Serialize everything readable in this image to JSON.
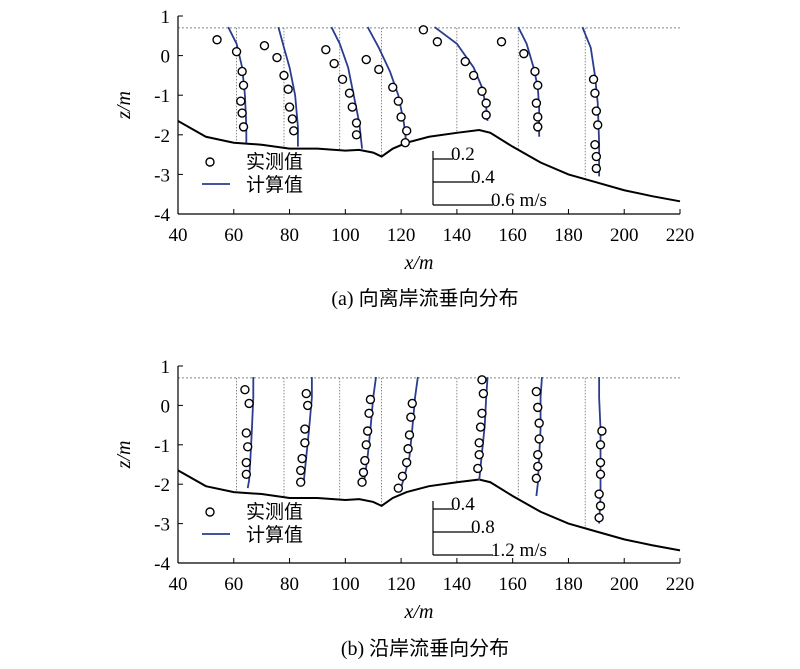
{
  "chart_data": [
    {
      "type": "line",
      "caption": "(a) 向离岸流垂向分布",
      "xlabel": "x/m",
      "ylabel": "z/m",
      "xlim": [
        40,
        220
      ],
      "ylim": [
        -4,
        1
      ],
      "xticks": [
        40,
        60,
        80,
        100,
        120,
        140,
        160,
        180,
        200,
        220
      ],
      "yticks": [
        1,
        0,
        -1,
        -2,
        -3,
        -4
      ],
      "water_level": 0.7,
      "legend": {
        "measured": "实测值",
        "computed": "计算值"
      },
      "scale_bar": {
        "labels": [
          "0.2",
          "0.4",
          "0.6 m/s"
        ],
        "values": [
          0.2,
          0.4,
          0.6
        ]
      },
      "bed_profile": [
        [
          40,
          -1.65
        ],
        [
          50,
          -2.05
        ],
        [
          60,
          -2.2
        ],
        [
          70,
          -2.25
        ],
        [
          80,
          -2.35
        ],
        [
          90,
          -2.35
        ],
        [
          100,
          -2.4
        ],
        [
          105,
          -2.38
        ],
        [
          110,
          -2.45
        ],
        [
          113,
          -2.55
        ],
        [
          117,
          -2.35
        ],
        [
          122,
          -2.2
        ],
        [
          130,
          -2.05
        ],
        [
          140,
          -1.95
        ],
        [
          148,
          -1.88
        ],
        [
          152,
          -1.95
        ],
        [
          160,
          -2.3
        ],
        [
          170,
          -2.7
        ],
        [
          180,
          -3.0
        ],
        [
          190,
          -3.2
        ],
        [
          200,
          -3.4
        ],
        [
          210,
          -3.55
        ],
        [
          220,
          -3.68
        ]
      ],
      "stations": [
        {
          "x0": 61,
          "measured": [
            [
              54,
              0.4
            ],
            [
              61,
              0.1
            ],
            [
              63,
              -0.4
            ],
            [
              63.5,
              -0.75
            ],
            [
              62.5,
              -1.15
            ],
            [
              63,
              -1.45
            ],
            [
              63.5,
              -1.8
            ]
          ],
          "computed": [
            [
              58,
              0.72
            ],
            [
              61,
              0.3
            ],
            [
              63,
              -0.3
            ],
            [
              64,
              -1.0
            ],
            [
              64.5,
              -1.8
            ],
            [
              64.5,
              -2.2
            ]
          ]
        },
        {
          "x0": 78,
          "measured": [
            [
              71,
              0.25
            ],
            [
              75.5,
              -0.05
            ],
            [
              78,
              -0.5
            ],
            [
              79.5,
              -0.85
            ],
            [
              80,
              -1.3
            ],
            [
              81,
              -1.6
            ],
            [
              81.5,
              -1.9
            ]
          ],
          "computed": [
            [
              76,
              0.72
            ],
            [
              78,
              0.2
            ],
            [
              80,
              -0.3
            ],
            [
              82,
              -1.0
            ],
            [
              83,
              -1.8
            ],
            [
              83,
              -2.3
            ]
          ]
        },
        {
          "x0": 98,
          "measured": [
            [
              93,
              0.15
            ],
            [
              96,
              -0.2
            ],
            [
              99,
              -0.6
            ],
            [
              101.5,
              -0.95
            ],
            [
              102.5,
              -1.3
            ],
            [
              104,
              -1.7
            ],
            [
              104,
              -2.0
            ]
          ],
          "computed": [
            [
              95,
              0.72
            ],
            [
              98,
              0.3
            ],
            [
              101,
              -0.3
            ],
            [
              103,
              -1.0
            ],
            [
              105,
              -1.7
            ],
            [
              106,
              -2.35
            ]
          ]
        },
        {
          "x0": 113,
          "measured": [
            [
              107.5,
              -0.1
            ],
            [
              112,
              -0.35
            ],
            [
              117,
              -0.8
            ],
            [
              119,
              -1.15
            ],
            [
              120,
              -1.55
            ],
            [
              122,
              -1.9
            ],
            [
              121.5,
              -2.2
            ]
          ],
          "computed": [
            [
              108,
              0.72
            ],
            [
              112,
              0.2
            ],
            [
              116,
              -0.4
            ],
            [
              119,
              -1.0
            ],
            [
              121,
              -1.7
            ],
            [
              122,
              -2.3
            ]
          ]
        },
        {
          "x0": 140,
          "measured": [
            [
              128,
              0.65
            ],
            [
              133,
              0.35
            ],
            [
              143,
              -0.15
            ],
            [
              146,
              -0.5
            ],
            [
              149,
              -0.9
            ],
            [
              150.5,
              -1.2
            ],
            [
              150.5,
              -1.5
            ]
          ],
          "computed": [
            [
              132,
              0.72
            ],
            [
              140,
              0.3
            ],
            [
              146,
              -0.3
            ],
            [
              149,
              -0.8
            ],
            [
              150.5,
              -1.3
            ],
            [
              151,
              -1.65
            ]
          ]
        },
        {
          "x0": 162,
          "measured": [
            [
              156,
              0.35
            ],
            [
              164,
              0.05
            ],
            [
              168,
              -0.4
            ],
            [
              169,
              -0.75
            ],
            [
              168.5,
              -1.2
            ],
            [
              169,
              -1.55
            ],
            [
              169,
              -1.8
            ]
          ],
          "computed": [
            [
              162,
              0.72
            ],
            [
              165,
              0.3
            ],
            [
              167.5,
              -0.3
            ],
            [
              169,
              -0.8
            ],
            [
              169.5,
              -1.3
            ],
            [
              169.5,
              -2.05
            ]
          ]
        },
        {
          "x0": 186,
          "measured": [
            [
              189,
              -0.6
            ],
            [
              189.5,
              -0.95
            ],
            [
              190,
              -1.4
            ],
            [
              190.5,
              -1.75
            ],
            [
              189.5,
              -2.25
            ],
            [
              190,
              -2.55
            ],
            [
              190,
              -2.85
            ]
          ],
          "computed": [
            [
              185,
              0.72
            ],
            [
              188,
              0.2
            ],
            [
              189.5,
              -0.5
            ],
            [
              190.5,
              -1.2
            ],
            [
              191,
              -2.2
            ],
            [
              191,
              -3.05
            ]
          ]
        }
      ]
    },
    {
      "type": "line",
      "caption": "(b) 沿岸流垂向分布",
      "xlabel": "x/m",
      "ylabel": "z/m",
      "xlim": [
        40,
        220
      ],
      "ylim": [
        -4,
        1
      ],
      "xticks": [
        40,
        60,
        80,
        100,
        120,
        140,
        160,
        180,
        200,
        220
      ],
      "yticks": [
        1,
        0,
        -1,
        -2,
        -3,
        -4
      ],
      "water_level": 0.7,
      "legend": {
        "measured": "实测值",
        "computed": "计算值"
      },
      "scale_bar": {
        "labels": [
          "0.4",
          "0.8",
          "1.2 m/s"
        ],
        "values": [
          0.4,
          0.8,
          1.2
        ]
      },
      "bed_profile": [
        [
          40,
          -1.65
        ],
        [
          50,
          -2.05
        ],
        [
          60,
          -2.2
        ],
        [
          70,
          -2.25
        ],
        [
          80,
          -2.35
        ],
        [
          90,
          -2.35
        ],
        [
          100,
          -2.4
        ],
        [
          105,
          -2.38
        ],
        [
          110,
          -2.45
        ],
        [
          113,
          -2.55
        ],
        [
          117,
          -2.35
        ],
        [
          122,
          -2.2
        ],
        [
          130,
          -2.05
        ],
        [
          140,
          -1.95
        ],
        [
          148,
          -1.88
        ],
        [
          152,
          -1.95
        ],
        [
          160,
          -2.3
        ],
        [
          170,
          -2.7
        ],
        [
          180,
          -3.0
        ],
        [
          190,
          -3.2
        ],
        [
          200,
          -3.4
        ],
        [
          210,
          -3.55
        ],
        [
          220,
          -3.68
        ]
      ],
      "stations": [
        {
          "x0": 61,
          "measured": [
            [
              64,
              0.4
            ],
            [
              65.5,
              0.05
            ],
            [
              64.5,
              -0.7
            ],
            [
              65,
              -1.05
            ],
            [
              64.5,
              -1.45
            ],
            [
              64.5,
              -1.75
            ]
          ],
          "computed": [
            [
              67,
              0.72
            ],
            [
              67,
              0.2
            ],
            [
              66.5,
              -0.6
            ],
            [
              66,
              -1.3
            ],
            [
              65.5,
              -1.9
            ],
            [
              65,
              -2.1
            ]
          ]
        },
        {
          "x0": 78,
          "measured": [
            [
              86,
              0.3
            ],
            [
              86.5,
              0.0
            ],
            [
              85.5,
              -0.6
            ],
            [
              85.5,
              -0.95
            ],
            [
              84.5,
              -1.35
            ],
            [
              84,
              -1.65
            ],
            [
              84,
              -1.95
            ]
          ],
          "computed": [
            [
              88,
              0.72
            ],
            [
              88,
              0.2
            ],
            [
              87,
              -0.6
            ],
            [
              86,
              -1.3
            ],
            [
              85,
              -2.0
            ]
          ]
        },
        {
          "x0": 98,
          "measured": [
            [
              109,
              0.15
            ],
            [
              108.5,
              -0.2
            ],
            [
              108,
              -0.65
            ],
            [
              107.5,
              -1.0
            ],
            [
              107,
              -1.4
            ],
            [
              106.5,
              -1.7
            ],
            [
              106,
              -1.95
            ]
          ],
          "computed": [
            [
              111,
              0.72
            ],
            [
              110,
              0.2
            ],
            [
              109,
              -0.6
            ],
            [
              108,
              -1.3
            ],
            [
              106.5,
              -2.05
            ]
          ]
        },
        {
          "x0": 113,
          "measured": [
            [
              124,
              0.05
            ],
            [
              123.5,
              -0.3
            ],
            [
              123,
              -0.75
            ],
            [
              122.5,
              -1.1
            ],
            [
              122,
              -1.45
            ],
            [
              120.5,
              -1.8
            ],
            [
              119,
              -2.1
            ]
          ],
          "computed": [
            [
              126,
              0.72
            ],
            [
              125,
              0.2
            ],
            [
              124,
              -0.6
            ],
            [
              123,
              -1.3
            ],
            [
              121,
              -1.85
            ],
            [
              119.5,
              -2.2
            ]
          ]
        },
        {
          "x0": 140,
          "measured": [
            [
              149,
              0.65
            ],
            [
              149.5,
              0.3
            ],
            [
              149,
              -0.2
            ],
            [
              148.5,
              -0.55
            ],
            [
              148,
              -0.95
            ],
            [
              148,
              -1.25
            ],
            [
              147.5,
              -1.6
            ]
          ],
          "computed": [
            [
              151,
              0.72
            ],
            [
              150.5,
              0.2
            ],
            [
              150,
              -0.5
            ],
            [
              149,
              -1.2
            ],
            [
              148,
              -1.9
            ]
          ]
        },
        {
          "x0": 162,
          "measured": [
            [
              168.5,
              0.35
            ],
            [
              169,
              -0.05
            ],
            [
              169.5,
              -0.45
            ],
            [
              169.5,
              -0.85
            ],
            [
              169,
              -1.25
            ],
            [
              169,
              -1.55
            ],
            [
              168.5,
              -1.85
            ]
          ],
          "computed": [
            [
              170.5,
              0.72
            ],
            [
              170,
              0.2
            ],
            [
              170,
              -0.6
            ],
            [
              169.5,
              -1.3
            ],
            [
              169,
              -2.0
            ],
            [
              168.5,
              -2.3
            ]
          ]
        },
        {
          "x0": 186,
          "measured": [
            [
              192,
              -0.65
            ],
            [
              191.5,
              -1.0
            ],
            [
              191.5,
              -1.45
            ],
            [
              191.5,
              -1.75
            ],
            [
              191,
              -2.25
            ],
            [
              191.5,
              -2.55
            ],
            [
              191,
              -2.85
            ]
          ],
          "computed": [
            [
              191,
              0.72
            ],
            [
              191,
              0.2
            ],
            [
              191.5,
              -0.6
            ],
            [
              191.5,
              -1.4
            ],
            [
              191.5,
              -2.3
            ],
            [
              191,
              -3.0
            ]
          ]
        }
      ]
    }
  ],
  "colors": {
    "computed_line": "#2b3c8f",
    "measured_marker": "#000000",
    "bed_line": "#000000",
    "guide_line": "#555555"
  }
}
